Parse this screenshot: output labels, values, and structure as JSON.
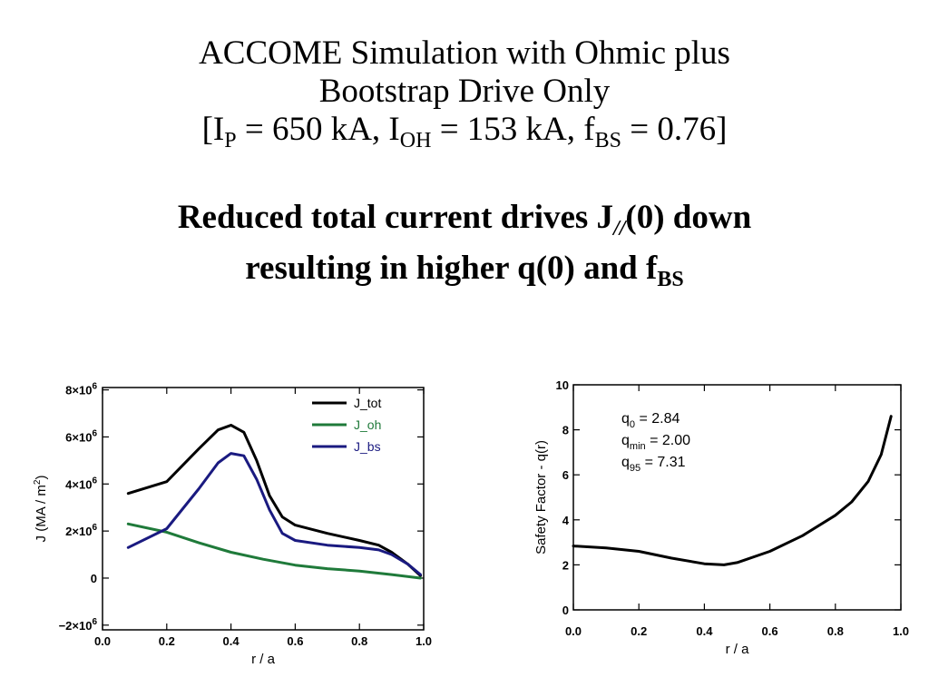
{
  "title": {
    "line1": "ACCOME Simulation with Ohmic plus",
    "line2": "Bootstrap Drive Only",
    "line3": {
      "open": "[I",
      "ip_sub": "P",
      "ip_val": " = 650 kA, I",
      "ioh_sub": "OH",
      "ioh_val": " = 153 kA, f",
      "fbs_sub": "BS",
      "fbs_val": " = 0.76]"
    }
  },
  "subtitle": {
    "line1_a": "Reduced total current drives J",
    "line1_sub": "//",
    "line1_b": "(0) down",
    "line2_a": "resulting in higher q(0) and f",
    "line2_sub": "BS"
  },
  "colors": {
    "tot": "#000000",
    "oh": "#1f7a3a",
    "bs": "#1a1a80",
    "q": "#000000"
  },
  "chart_data": [
    {
      "type": "line",
      "xlabel": "r / a",
      "ylabel": "J (MA / m2)",
      "xlim": [
        0.0,
        1.0
      ],
      "ylim": [
        -2200000,
        8100000
      ],
      "x_ticks": [
        "0.0",
        "0.2",
        "0.4",
        "0.6",
        "0.8",
        "1.0"
      ],
      "y_ticks": [
        {
          "value": -2000000,
          "mantissa": "−2×10",
          "exp": "6"
        },
        {
          "value": 0,
          "mantissa": "0",
          "exp": ""
        },
        {
          "value": 2000000,
          "mantissa": "2×10",
          "exp": "6"
        },
        {
          "value": 4000000,
          "mantissa": "4×10",
          "exp": "6"
        },
        {
          "value": 6000000,
          "mantissa": "6×10",
          "exp": "6"
        },
        {
          "value": 8000000,
          "mantissa": "8×10",
          "exp": "6"
        }
      ],
      "legend": "top-right",
      "series": [
        {
          "name": "J_tot",
          "key": "tot",
          "x": [
            0.08,
            0.2,
            0.3,
            0.36,
            0.4,
            0.44,
            0.48,
            0.52,
            0.56,
            0.6,
            0.7,
            0.8,
            0.86,
            0.9,
            0.95,
            0.99
          ],
          "y": [
            3600000,
            4100000,
            5500000,
            6300000,
            6500000,
            6200000,
            5000000,
            3500000,
            2600000,
            2250000,
            1900000,
            1600000,
            1400000,
            1100000,
            600000,
            100000
          ]
        },
        {
          "name": "J_oh",
          "key": "oh",
          "x": [
            0.08,
            0.2,
            0.3,
            0.4,
            0.5,
            0.6,
            0.7,
            0.8,
            0.9,
            0.99
          ],
          "y": [
            2300000,
            1950000,
            1500000,
            1100000,
            800000,
            550000,
            400000,
            300000,
            150000,
            0
          ]
        },
        {
          "name": "J_bs",
          "key": "bs",
          "x": [
            0.08,
            0.2,
            0.3,
            0.36,
            0.4,
            0.44,
            0.48,
            0.52,
            0.56,
            0.6,
            0.7,
            0.8,
            0.86,
            0.9,
            0.95,
            0.99
          ],
          "y": [
            1300000,
            2100000,
            3800000,
            4900000,
            5300000,
            5200000,
            4200000,
            2900000,
            1900000,
            1600000,
            1400000,
            1300000,
            1200000,
            1000000,
            600000,
            150000
          ]
        }
      ]
    },
    {
      "type": "line",
      "xlabel": "r / a",
      "ylabel": "Safety Factor - q(r)",
      "xlim": [
        0.0,
        1.0
      ],
      "ylim": [
        0,
        10
      ],
      "x_ticks": [
        "0.0",
        "0.2",
        "0.4",
        "0.6",
        "0.8",
        "1.0"
      ],
      "y_ticks": [
        "0",
        "2",
        "4",
        "6",
        "8",
        "10"
      ],
      "annotations": [
        {
          "base": "q",
          "sub": "0",
          "text": " = 2.84"
        },
        {
          "base": "q",
          "sub": "min",
          "text": " = 2.00"
        },
        {
          "base": "q",
          "sub": "95",
          "text": " = 7.31"
        }
      ],
      "series": [
        {
          "key": "q",
          "x": [
            0.0,
            0.1,
            0.2,
            0.3,
            0.4,
            0.46,
            0.5,
            0.6,
            0.7,
            0.8,
            0.85,
            0.9,
            0.94,
            0.97
          ],
          "y": [
            2.84,
            2.75,
            2.6,
            2.3,
            2.05,
            2.0,
            2.1,
            2.6,
            3.3,
            4.2,
            4.8,
            5.7,
            6.9,
            8.6
          ]
        }
      ]
    }
  ]
}
